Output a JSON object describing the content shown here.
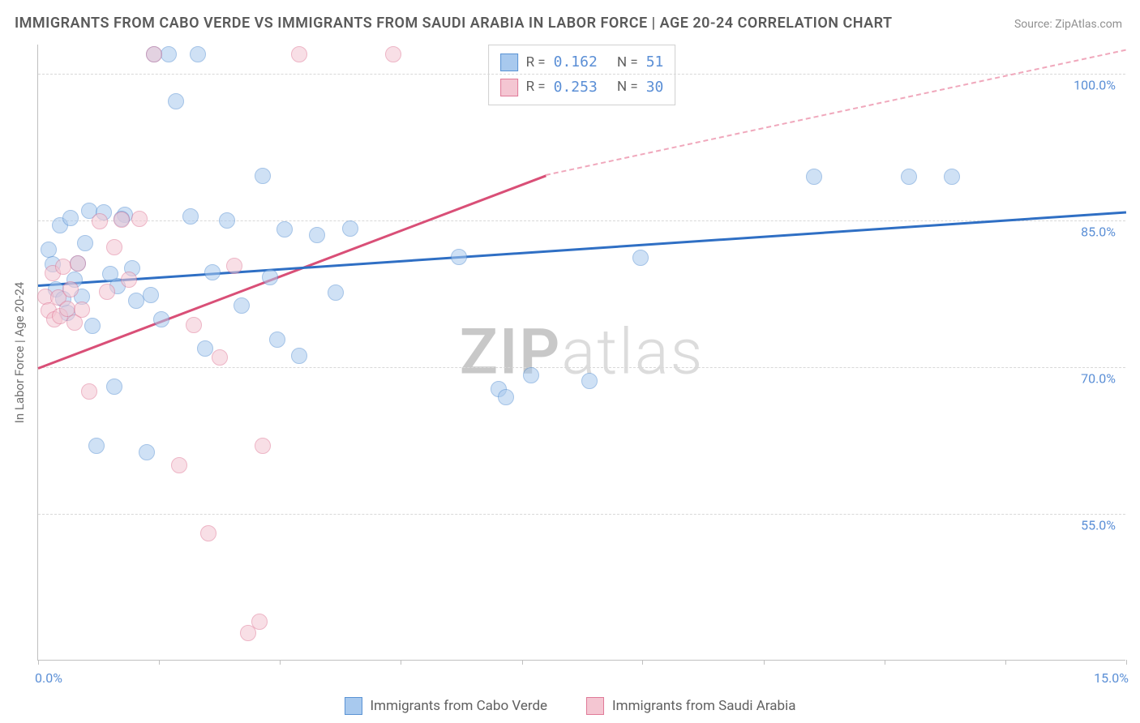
{
  "title": "IMMIGRANTS FROM CABO VERDE VS IMMIGRANTS FROM SAUDI ARABIA IN LABOR FORCE | AGE 20-24 CORRELATION CHART",
  "source": "Source: ZipAtlas.com",
  "watermark_bold": "ZIP",
  "watermark_light": "atlas",
  "y_axis_label": "In Labor Force | Age 20-24",
  "chart": {
    "type": "scatter",
    "xlim": [
      0,
      15
    ],
    "ylim": [
      40,
      103
    ],
    "x_ticks": [
      0,
      1.67,
      3.33,
      5.0,
      6.67,
      8.33,
      10.0,
      11.67,
      13.33,
      15.0
    ],
    "x_tick_labels_shown": {
      "first": "0.0%",
      "last": "15.0%"
    },
    "y_grid": [
      55,
      70,
      85,
      100
    ],
    "y_tick_labels": [
      "55.0%",
      "70.0%",
      "85.0%",
      "100.0%"
    ],
    "background_color": "#ffffff",
    "grid_color": "#d8d8d8",
    "axis_color": "#c0c0c0",
    "axis_label_color": "#5b8fd6",
    "point_radius": 10,
    "point_opacity": 0.55,
    "series": [
      {
        "name": "Immigrants from Cabo Verde",
        "color_fill": "#a8c9ee",
        "color_stroke": "#5a93d4",
        "R": "0.162",
        "N": "51",
        "trend": {
          "x1": 0,
          "y1": 78.5,
          "x2": 15,
          "y2": 86.0,
          "style": "solid",
          "color": "#2f6fc4",
          "width": 3
        },
        "points": [
          [
            0.15,
            82
          ],
          [
            0.2,
            80.5
          ],
          [
            0.25,
            78
          ],
          [
            0.3,
            84.5
          ],
          [
            0.35,
            77
          ],
          [
            0.4,
            75.6
          ],
          [
            0.45,
            85.3
          ],
          [
            0.5,
            79
          ],
          [
            0.6,
            77.2
          ],
          [
            0.65,
            82.7
          ],
          [
            0.7,
            86
          ],
          [
            0.75,
            74.2
          ],
          [
            0.8,
            62
          ],
          [
            0.9,
            85.8
          ],
          [
            1.0,
            79.5
          ],
          [
            1.05,
            68
          ],
          [
            1.1,
            78.3
          ],
          [
            1.2,
            85.6
          ],
          [
            1.3,
            80.1
          ],
          [
            1.35,
            76.8
          ],
          [
            1.5,
            61.3
          ],
          [
            1.55,
            77.4
          ],
          [
            1.6,
            102
          ],
          [
            1.7,
            74.9
          ],
          [
            1.8,
            102
          ],
          [
            1.9,
            97.2
          ],
          [
            2.1,
            85.4
          ],
          [
            2.2,
            102
          ],
          [
            2.3,
            71.9
          ],
          [
            2.4,
            79.7
          ],
          [
            2.6,
            85
          ],
          [
            2.8,
            76.3
          ],
          [
            3.1,
            89.6
          ],
          [
            3.2,
            79.2
          ],
          [
            3.3,
            72.8
          ],
          [
            3.4,
            84.1
          ],
          [
            3.6,
            71.2
          ],
          [
            3.85,
            83.5
          ],
          [
            4.1,
            77.6
          ],
          [
            4.3,
            84.2
          ],
          [
            5.8,
            81.3
          ],
          [
            6.35,
            67.8
          ],
          [
            6.45,
            66.9
          ],
          [
            6.8,
            69.2
          ],
          [
            7.6,
            68.6
          ],
          [
            8.3,
            81.2
          ],
          [
            10.7,
            89.5
          ],
          [
            12.0,
            89.5
          ],
          [
            12.6,
            89.5
          ],
          [
            0.55,
            80.6
          ],
          [
            1.15,
            85.2
          ]
        ]
      },
      {
        "name": "Immigrants from Saudi Aria",
        "name_correct": "Immigrants from Saudi Arabia",
        "color_fill": "#f4c6d2",
        "color_stroke": "#e07a98",
        "R": "0.253",
        "N": "30",
        "trend_solid": {
          "x1": 0,
          "y1": 70.0,
          "x2": 7.0,
          "y2": 89.7,
          "style": "solid",
          "color": "#d94f77",
          "width": 3
        },
        "trend_dashed": {
          "x1": 7.0,
          "y1": 89.7,
          "x2": 15.0,
          "y2": 102.5,
          "style": "dashed",
          "color": "#f0a8bc",
          "width": 2
        },
        "points": [
          [
            0.1,
            77.2
          ],
          [
            0.15,
            75.8
          ],
          [
            0.2,
            79.6
          ],
          [
            0.22,
            74.9
          ],
          [
            0.28,
            77.1
          ],
          [
            0.3,
            75.2
          ],
          [
            0.35,
            80.3
          ],
          [
            0.4,
            76.0
          ],
          [
            0.45,
            78.0
          ],
          [
            0.5,
            74.6
          ],
          [
            0.55,
            80.6
          ],
          [
            0.6,
            75.9
          ],
          [
            0.7,
            67.5
          ],
          [
            0.85,
            84.9
          ],
          [
            0.95,
            77.7
          ],
          [
            1.05,
            82.3
          ],
          [
            1.15,
            85.1
          ],
          [
            1.25,
            79.0
          ],
          [
            1.4,
            85.2
          ],
          [
            1.6,
            102
          ],
          [
            1.95,
            60.0
          ],
          [
            2.15,
            74.3
          ],
          [
            2.35,
            53.0
          ],
          [
            2.5,
            71.0
          ],
          [
            2.7,
            80.4
          ],
          [
            2.9,
            42.8
          ],
          [
            3.05,
            44.0
          ],
          [
            3.1,
            62.0
          ],
          [
            3.6,
            102
          ],
          [
            4.9,
            102
          ]
        ]
      }
    ]
  },
  "legend": {
    "series1_label": "Immigrants from Cabo Verde",
    "series2_label": "Immigrants from Saudi Arabia"
  },
  "stats_labels": {
    "R": "R  =",
    "N": "N  ="
  }
}
